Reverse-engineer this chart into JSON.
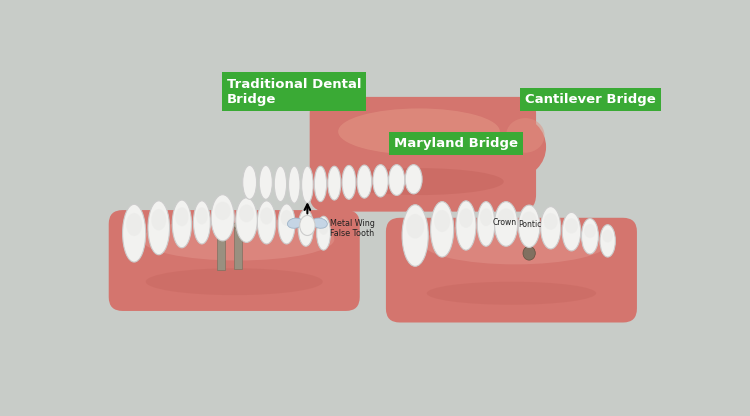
{
  "bg_color": "#c8ccc8",
  "green_color": "#3aaa35",
  "label_text_color": "#ffffff",
  "title1": "Traditional Dental\nBridge",
  "title2": "Cantilever Bridge",
  "title3": "Maryland Bridge",
  "ann_crown": "Crown",
  "ann_pontic": "Pontic",
  "ann_metal_wing": "Metal Wing",
  "ann_false_tooth": "False Tooth",
  "gum_main": "#d4756e",
  "gum_light": "#e09088",
  "gum_shadow": "#c06058",
  "tooth_white": "#f2f2f0",
  "tooth_edge": "#cccccc",
  "implant_gray": "#999080",
  "light_blue": "#c5d5e5",
  "stub_dark": "#807060"
}
